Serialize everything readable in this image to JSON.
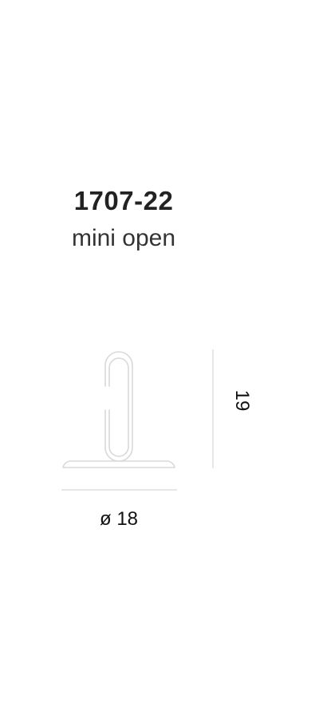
{
  "product": {
    "code": "1707-22",
    "name": "mini open"
  },
  "dimensions": {
    "diameter_label": "ø 18",
    "height_label": "19"
  },
  "colors": {
    "outline": "#d9d9d9",
    "dimension_line": "#cfcfcf",
    "text": "#222222"
  }
}
